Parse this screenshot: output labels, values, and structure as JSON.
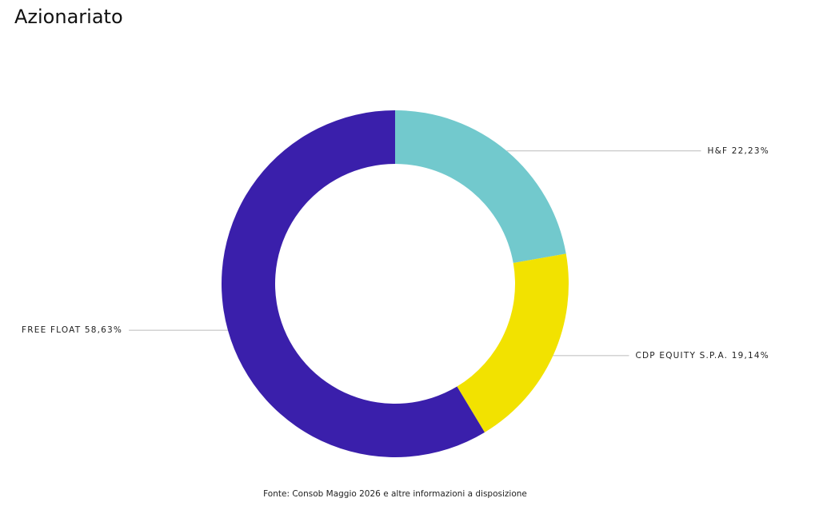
{
  "chart_data": {
    "type": "donut",
    "title": "Azionariato",
    "categories": [
      "H&F",
      "CDP EQUITY S.P.A.",
      "FREE FLOAT"
    ],
    "values": [
      22.23,
      19.14,
      58.63
    ],
    "value_labels": [
      "22,23%",
      "19,14%",
      "58,63%"
    ],
    "colors": [
      "#72c9cd",
      "#f2e200",
      "#3a1fab"
    ],
    "source": "Fonte: Consob Maggio 2026 e altre informazioni a disposizione"
  }
}
